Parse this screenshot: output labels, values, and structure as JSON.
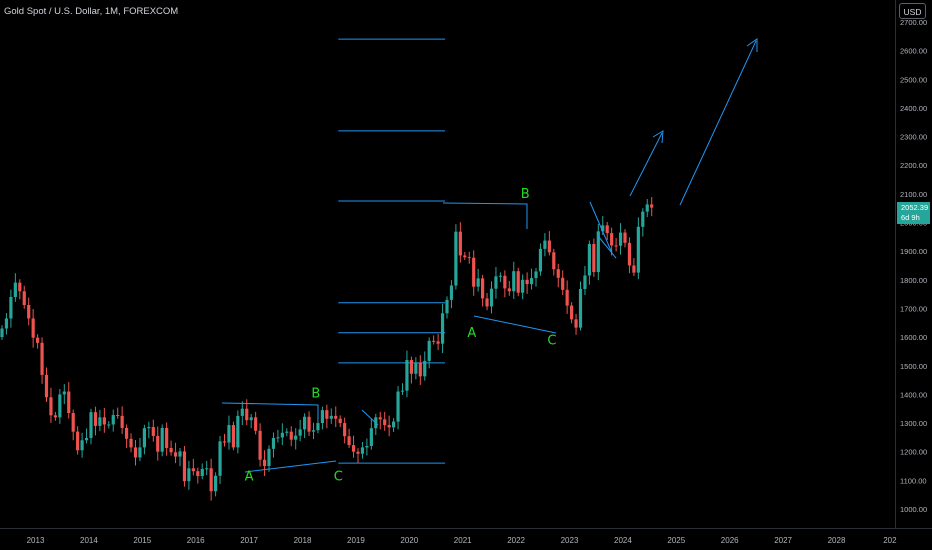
{
  "header": {
    "symbol_title": "Gold Spot / U.S. Dollar, 1M, FOREXCOM",
    "currency": "USD"
  },
  "last_price": {
    "value": "2052.39",
    "countdown": "6d 9h"
  },
  "colors": {
    "background": "#000000",
    "up_candle": "#26a69a",
    "down_candle": "#ef5350",
    "drawing": "#2196f3",
    "wave_label": "#22dd22",
    "axis_text": "#b2b5be"
  },
  "chart_data": {
    "type": "candlestick",
    "title": "",
    "xlabel": "",
    "ylabel": "",
    "x_ticks": [
      "2013",
      "2014",
      "2015",
      "2016",
      "2017",
      "2018",
      "2019",
      "2020",
      "2021",
      "2022",
      "2023",
      "2024",
      "2025",
      "2026",
      "2027",
      "2028",
      "202"
    ],
    "y_ticks": [
      "1000.00",
      "1100.00",
      "1200.00",
      "1300.00",
      "1400.00",
      "1500.00",
      "1600.00",
      "1700.00",
      "1800.00",
      "1900.00",
      "2000.00",
      "2100.00",
      "2200.00",
      "2300.00",
      "2400.00",
      "2500.00",
      "2600.00",
      "2700.00"
    ],
    "ylim": [
      940,
      2760
    ],
    "grid": false,
    "closes": [
      1630,
      1665,
      1740,
      1790,
      1760,
      1712,
      1665,
      1598,
      1580,
      1468,
      1390,
      1327,
      1320,
      1400,
      1410,
      1335,
      1270,
      1205,
      1240,
      1248,
      1338,
      1290,
      1320,
      1295,
      1295,
      1328,
      1325,
      1283,
      1245,
      1215,
      1180,
      1215,
      1282,
      1286,
      1255,
      1200,
      1283,
      1213,
      1198,
      1183,
      1201,
      1097,
      1142,
      1132,
      1115,
      1140,
      1142,
      1062,
      1116,
      1236,
      1232,
      1293,
      1215,
      1325,
      1350,
      1310,
      1320,
      1273,
      1172,
      1150,
      1210,
      1248,
      1250,
      1266,
      1270,
      1242,
      1256,
      1278,
      1322,
      1270,
      1275,
      1300,
      1345,
      1315,
      1325,
      1315,
      1300,
      1254,
      1223,
      1200,
      1193,
      1215,
      1220,
      1282,
      1320,
      1313,
      1293,
      1285,
      1305,
      1410,
      1413,
      1520,
      1472,
      1511,
      1463,
      1517,
      1587,
      1585,
      1577,
      1683,
      1730,
      1780,
      1968,
      1885,
      1879,
      1877,
      1776,
      1805,
      1735,
      1707,
      1769,
      1812,
      1814,
      1770,
      1760,
      1830,
      1755,
      1800,
      1785,
      1806,
      1829,
      1908,
      1937,
      1896,
      1837,
      1807,
      1765,
      1710,
      1662,
      1633,
      1768,
      1815,
      1925,
      1827,
      1969,
      1990,
      1963,
      1920,
      1919,
      1965,
      1929,
      1850,
      1825,
      1985,
      2038,
      2063,
      2052
    ]
  },
  "annotations": {
    "wave_labels": [
      {
        "text": "A",
        "date": 2017.0,
        "price": 1100
      },
      {
        "text": "B",
        "date": 2018.25,
        "price": 1390
      },
      {
        "text": "C",
        "date": 2018.67,
        "price": 1100
      },
      {
        "text": "A",
        "date": 2021.17,
        "price": 1600
      },
      {
        "text": "B",
        "date": 2022.17,
        "price": 2085
      },
      {
        "text": "C",
        "date": 2022.67,
        "price": 1575
      }
    ],
    "levels": [
      {
        "price": 2640,
        "from": 2018.67,
        "to": 2020.67
      },
      {
        "price": 2320,
        "from": 2018.67,
        "to": 2020.67
      },
      {
        "price": 2075,
        "from": 2018.67,
        "to": 2020.67
      },
      {
        "price": 1720,
        "from": 2018.67,
        "to": 2020.67
      },
      {
        "price": 1615,
        "from": 2018.67,
        "to": 2020.67
      },
      {
        "price": 1510,
        "from": 2018.67,
        "to": 2020.67
      },
      {
        "price": 1160,
        "from": 2018.67,
        "to": 2020.67
      }
    ]
  }
}
